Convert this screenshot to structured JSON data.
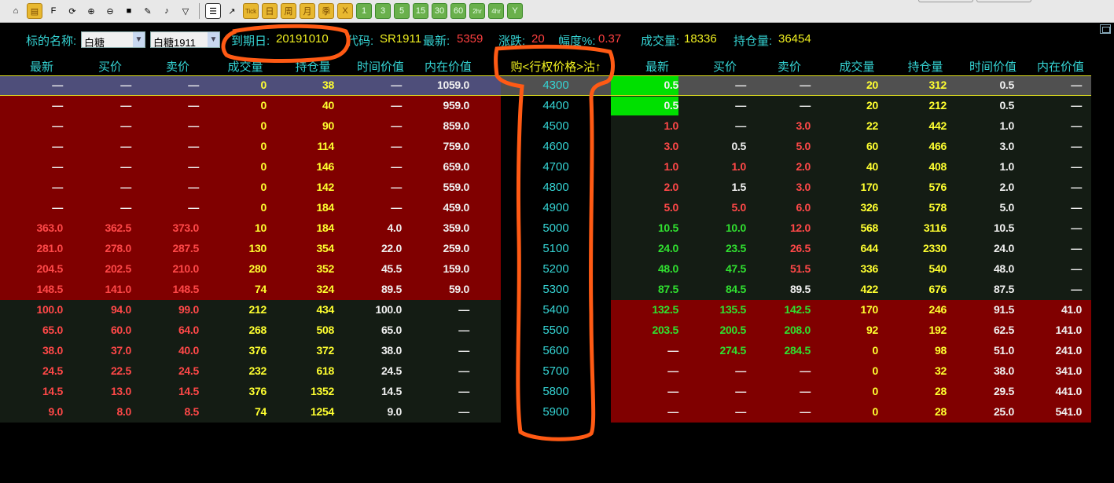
{
  "toolbar": {
    "items": [
      {
        "icon": "home-icon",
        "glyph": "⌂",
        "cls": ""
      },
      {
        "icon": "notebook-icon",
        "glyph": "▤",
        "cls": "y"
      },
      {
        "icon": "f10-icon",
        "glyph": "F",
        "cls": ""
      },
      {
        "icon": "refresh-icon",
        "glyph": "⟳",
        "cls": ""
      },
      {
        "icon": "zoom-in-icon",
        "glyph": "⊕",
        "cls": ""
      },
      {
        "icon": "zoom-out-icon",
        "glyph": "⊖",
        "cls": ""
      },
      {
        "icon": "windows-icon",
        "glyph": "■",
        "cls": ""
      },
      {
        "icon": "pen-icon",
        "glyph": "✎",
        "cls": ""
      },
      {
        "icon": "horn-icon",
        "glyph": "♪",
        "cls": ""
      },
      {
        "icon": "filter-icon",
        "glyph": "▽",
        "cls": ""
      },
      {
        "icon": "sep"
      },
      {
        "icon": "table-icon",
        "glyph": "☰",
        "cls": "sel"
      },
      {
        "icon": "chart-icon",
        "glyph": "↗",
        "cls": ""
      },
      {
        "icon": "tick-icon",
        "glyph": "Tick",
        "cls": "y"
      },
      {
        "icon": "day-icon",
        "glyph": "日",
        "cls": "y"
      },
      {
        "icon": "week-icon",
        "glyph": "周",
        "cls": "y"
      },
      {
        "icon": "month-icon",
        "glyph": "月",
        "cls": "y"
      },
      {
        "icon": "quarter-icon",
        "glyph": "季",
        "cls": "y"
      },
      {
        "icon": "x-icon",
        "glyph": "X",
        "cls": "y"
      },
      {
        "icon": "1min-icon",
        "glyph": "1",
        "cls": "g"
      },
      {
        "icon": "3min-icon",
        "glyph": "3",
        "cls": "g"
      },
      {
        "icon": "5min-icon",
        "glyph": "5",
        "cls": "g"
      },
      {
        "icon": "15min-icon",
        "glyph": "15",
        "cls": "g"
      },
      {
        "icon": "30min-icon",
        "glyph": "30",
        "cls": "g"
      },
      {
        "icon": "60min-icon",
        "glyph": "60",
        "cls": "g"
      },
      {
        "icon": "2hr-icon",
        "glyph": "2hr",
        "cls": "g"
      },
      {
        "icon": "4hr-icon",
        "glyph": "4hr",
        "cls": "g"
      },
      {
        "icon": "year-icon",
        "glyph": "Y",
        "cls": "g"
      }
    ]
  },
  "info": {
    "underlying_label": "标的名称:",
    "underlying_value": "白糖",
    "contract_value": "白糖1911",
    "expiry_label": "到期日:",
    "expiry_value": "20191010",
    "code_label": "代码:",
    "code_value": "SR1911",
    "last_label": "最新:",
    "last_value": "5359",
    "change_label": "涨跌:",
    "change_value": "20",
    "pct_label": "幅度%:",
    "pct_value": "0.37",
    "volume_label": "成交量:",
    "volume_value": "18336",
    "oi_label": "持仓量:",
    "oi_value": "36454"
  },
  "columns": {
    "left": [
      "最新",
      "买价",
      "卖价",
      "成交量",
      "持仓量",
      "时间价值",
      "内在价值"
    ],
    "center": "购<行权价格>沽↑",
    "right": [
      "最新",
      "买价",
      "卖价",
      "成交量",
      "持仓量",
      "时间价值",
      "内在价值"
    ]
  },
  "colors": {
    "itm": "#800000",
    "otm": "#141c14",
    "selected_left": "#4e4e7a",
    "selected_right": "#505050",
    "highlight": "#00e000",
    "grid_line": "#e0e020",
    "strike": "#35d4d4"
  },
  "rows": [
    {
      "strike": "4300",
      "sel": true,
      "L": [
        [
          "—",
          "w"
        ],
        [
          "—",
          "w"
        ],
        [
          "—",
          "w"
        ],
        [
          "0",
          "y"
        ],
        [
          "38",
          "y"
        ],
        [
          "—",
          "w"
        ],
        [
          "1059.0",
          "w"
        ]
      ],
      "R": [
        [
          "0.5",
          "w",
          "hl"
        ],
        [
          "—",
          "w"
        ],
        [
          "—",
          "w"
        ],
        [
          "20",
          "y"
        ],
        [
          "312",
          "y"
        ],
        [
          "0.5",
          "w"
        ],
        [
          "—",
          "w"
        ]
      ]
    },
    {
      "strike": "4400",
      "L": [
        [
          "—",
          "w"
        ],
        [
          "—",
          "w"
        ],
        [
          "—",
          "w"
        ],
        [
          "0",
          "y"
        ],
        [
          "40",
          "y"
        ],
        [
          "—",
          "w"
        ],
        [
          "959.0",
          "w"
        ]
      ],
      "R": [
        [
          "0.5",
          "w",
          "hl"
        ],
        [
          "—",
          "w"
        ],
        [
          "—",
          "w"
        ],
        [
          "20",
          "y"
        ],
        [
          "212",
          "y"
        ],
        [
          "0.5",
          "w"
        ],
        [
          "—",
          "w"
        ]
      ]
    },
    {
      "strike": "4500",
      "L": [
        [
          "—",
          "w"
        ],
        [
          "—",
          "w"
        ],
        [
          "—",
          "w"
        ],
        [
          "0",
          "y"
        ],
        [
          "90",
          "y"
        ],
        [
          "—",
          "w"
        ],
        [
          "859.0",
          "w"
        ]
      ],
      "R": [
        [
          "1.0",
          "r"
        ],
        [
          "—",
          "w"
        ],
        [
          "3.0",
          "r"
        ],
        [
          "22",
          "y"
        ],
        [
          "442",
          "y"
        ],
        [
          "1.0",
          "w"
        ],
        [
          "—",
          "w"
        ]
      ]
    },
    {
      "strike": "4600",
      "L": [
        [
          "—",
          "w"
        ],
        [
          "—",
          "w"
        ],
        [
          "—",
          "w"
        ],
        [
          "0",
          "y"
        ],
        [
          "114",
          "y"
        ],
        [
          "—",
          "w"
        ],
        [
          "759.0",
          "w"
        ]
      ],
      "R": [
        [
          "3.0",
          "r"
        ],
        [
          "0.5",
          "w"
        ],
        [
          "5.0",
          "r"
        ],
        [
          "60",
          "y"
        ],
        [
          "466",
          "y"
        ],
        [
          "3.0",
          "w"
        ],
        [
          "—",
          "w"
        ]
      ]
    },
    {
      "strike": "4700",
      "L": [
        [
          "—",
          "w"
        ],
        [
          "—",
          "w"
        ],
        [
          "—",
          "w"
        ],
        [
          "0",
          "y"
        ],
        [
          "146",
          "y"
        ],
        [
          "—",
          "w"
        ],
        [
          "659.0",
          "w"
        ]
      ],
      "R": [
        [
          "1.0",
          "r"
        ],
        [
          "1.0",
          "r"
        ],
        [
          "2.0",
          "r"
        ],
        [
          "40",
          "y"
        ],
        [
          "408",
          "y"
        ],
        [
          "1.0",
          "w"
        ],
        [
          "—",
          "w"
        ]
      ]
    },
    {
      "strike": "4800",
      "L": [
        [
          "—",
          "w"
        ],
        [
          "—",
          "w"
        ],
        [
          "—",
          "w"
        ],
        [
          "0",
          "y"
        ],
        [
          "142",
          "y"
        ],
        [
          "—",
          "w"
        ],
        [
          "559.0",
          "w"
        ]
      ],
      "R": [
        [
          "2.0",
          "r"
        ],
        [
          "1.5",
          "w"
        ],
        [
          "3.0",
          "r"
        ],
        [
          "170",
          "y"
        ],
        [
          "576",
          "y"
        ],
        [
          "2.0",
          "w"
        ],
        [
          "—",
          "w"
        ]
      ]
    },
    {
      "strike": "4900",
      "L": [
        [
          "—",
          "w"
        ],
        [
          "—",
          "w"
        ],
        [
          "—",
          "w"
        ],
        [
          "0",
          "y"
        ],
        [
          "184",
          "y"
        ],
        [
          "—",
          "w"
        ],
        [
          "459.0",
          "w"
        ]
      ],
      "R": [
        [
          "5.0",
          "r"
        ],
        [
          "5.0",
          "r"
        ],
        [
          "6.0",
          "r"
        ],
        [
          "326",
          "y"
        ],
        [
          "578",
          "y"
        ],
        [
          "5.0",
          "w"
        ],
        [
          "—",
          "w"
        ]
      ]
    },
    {
      "strike": "5000",
      "L": [
        [
          "363.0",
          "r"
        ],
        [
          "362.5",
          "r"
        ],
        [
          "373.0",
          "r"
        ],
        [
          "10",
          "y"
        ],
        [
          "184",
          "y"
        ],
        [
          "4.0",
          "w"
        ],
        [
          "359.0",
          "w"
        ]
      ],
      "R": [
        [
          "10.5",
          "g"
        ],
        [
          "10.0",
          "g"
        ],
        [
          "12.0",
          "r"
        ],
        [
          "568",
          "y"
        ],
        [
          "3116",
          "y"
        ],
        [
          "10.5",
          "w"
        ],
        [
          "—",
          "w"
        ]
      ]
    },
    {
      "strike": "5100",
      "L": [
        [
          "281.0",
          "r"
        ],
        [
          "278.0",
          "r"
        ],
        [
          "287.5",
          "r"
        ],
        [
          "130",
          "y"
        ],
        [
          "354",
          "y"
        ],
        [
          "22.0",
          "w"
        ],
        [
          "259.0",
          "w"
        ]
      ],
      "R": [
        [
          "24.0",
          "g"
        ],
        [
          "23.5",
          "g"
        ],
        [
          "26.5",
          "r"
        ],
        [
          "644",
          "y"
        ],
        [
          "2330",
          "y"
        ],
        [
          "24.0",
          "w"
        ],
        [
          "—",
          "w"
        ]
      ]
    },
    {
      "strike": "5200",
      "L": [
        [
          "204.5",
          "r"
        ],
        [
          "202.5",
          "r"
        ],
        [
          "210.0",
          "r"
        ],
        [
          "280",
          "y"
        ],
        [
          "352",
          "y"
        ],
        [
          "45.5",
          "w"
        ],
        [
          "159.0",
          "w"
        ]
      ],
      "R": [
        [
          "48.0",
          "g"
        ],
        [
          "47.5",
          "g"
        ],
        [
          "51.5",
          "r"
        ],
        [
          "336",
          "y"
        ],
        [
          "540",
          "y"
        ],
        [
          "48.0",
          "w"
        ],
        [
          "—",
          "w"
        ]
      ]
    },
    {
      "strike": "5300",
      "L": [
        [
          "148.5",
          "r"
        ],
        [
          "141.0",
          "r"
        ],
        [
          "148.5",
          "r"
        ],
        [
          "74",
          "y"
        ],
        [
          "324",
          "y"
        ],
        [
          "89.5",
          "w"
        ],
        [
          "59.0",
          "w"
        ]
      ],
      "R": [
        [
          "87.5",
          "g"
        ],
        [
          "84.5",
          "g"
        ],
        [
          "89.5",
          "w"
        ],
        [
          "422",
          "y"
        ],
        [
          "676",
          "y"
        ],
        [
          "87.5",
          "w"
        ],
        [
          "—",
          "w"
        ]
      ]
    },
    {
      "strike": "5400",
      "L": [
        [
          "100.0",
          "r"
        ],
        [
          "94.0",
          "r"
        ],
        [
          "99.0",
          "r"
        ],
        [
          "212",
          "y"
        ],
        [
          "434",
          "y"
        ],
        [
          "100.0",
          "w"
        ],
        [
          "—",
          "w"
        ]
      ],
      "R": [
        [
          "132.5",
          "g"
        ],
        [
          "135.5",
          "g"
        ],
        [
          "142.5",
          "g"
        ],
        [
          "170",
          "y"
        ],
        [
          "246",
          "y"
        ],
        [
          "91.5",
          "w"
        ],
        [
          "41.0",
          "w"
        ]
      ]
    },
    {
      "strike": "5500",
      "L": [
        [
          "65.0",
          "r"
        ],
        [
          "60.0",
          "r"
        ],
        [
          "64.0",
          "r"
        ],
        [
          "268",
          "y"
        ],
        [
          "508",
          "y"
        ],
        [
          "65.0",
          "w"
        ],
        [
          "—",
          "w"
        ]
      ],
      "R": [
        [
          "203.5",
          "g"
        ],
        [
          "200.5",
          "g"
        ],
        [
          "208.0",
          "g"
        ],
        [
          "92",
          "y"
        ],
        [
          "192",
          "y"
        ],
        [
          "62.5",
          "w"
        ],
        [
          "141.0",
          "w"
        ]
      ]
    },
    {
      "strike": "5600",
      "L": [
        [
          "38.0",
          "r"
        ],
        [
          "37.0",
          "r"
        ],
        [
          "40.0",
          "r"
        ],
        [
          "376",
          "y"
        ],
        [
          "372",
          "y"
        ],
        [
          "38.0",
          "w"
        ],
        [
          "—",
          "w"
        ]
      ],
      "R": [
        [
          "—",
          "w"
        ],
        [
          "274.5",
          "g"
        ],
        [
          "284.5",
          "g"
        ],
        [
          "0",
          "y"
        ],
        [
          "98",
          "y"
        ],
        [
          "51.0",
          "w"
        ],
        [
          "241.0",
          "w"
        ]
      ]
    },
    {
      "strike": "5700",
      "L": [
        [
          "24.5",
          "r"
        ],
        [
          "22.5",
          "r"
        ],
        [
          "24.5",
          "r"
        ],
        [
          "232",
          "y"
        ],
        [
          "618",
          "y"
        ],
        [
          "24.5",
          "w"
        ],
        [
          "—",
          "w"
        ]
      ],
      "R": [
        [
          "—",
          "w"
        ],
        [
          "—",
          "w"
        ],
        [
          "—",
          "w"
        ],
        [
          "0",
          "y"
        ],
        [
          "32",
          "y"
        ],
        [
          "38.0",
          "w"
        ],
        [
          "341.0",
          "w"
        ]
      ]
    },
    {
      "strike": "5800",
      "L": [
        [
          "14.5",
          "r"
        ],
        [
          "13.0",
          "r"
        ],
        [
          "14.5",
          "r"
        ],
        [
          "376",
          "y"
        ],
        [
          "1352",
          "y"
        ],
        [
          "14.5",
          "w"
        ],
        [
          "—",
          "w"
        ]
      ],
      "R": [
        [
          "—",
          "w"
        ],
        [
          "—",
          "w"
        ],
        [
          "—",
          "w"
        ],
        [
          "0",
          "y"
        ],
        [
          "28",
          "y"
        ],
        [
          "29.5",
          "w"
        ],
        [
          "441.0",
          "w"
        ]
      ]
    },
    {
      "strike": "5900",
      "L": [
        [
          "9.0",
          "r"
        ],
        [
          "8.0",
          "r"
        ],
        [
          "8.5",
          "r"
        ],
        [
          "74",
          "y"
        ],
        [
          "1254",
          "y"
        ],
        [
          "9.0",
          "w"
        ],
        [
          "—",
          "w"
        ]
      ],
      "R": [
        [
          "—",
          "w"
        ],
        [
          "—",
          "w"
        ],
        [
          "—",
          "w"
        ],
        [
          "0",
          "y"
        ],
        [
          "28",
          "y"
        ],
        [
          "25.0",
          "w"
        ],
        [
          "541.0",
          "w"
        ]
      ]
    }
  ]
}
